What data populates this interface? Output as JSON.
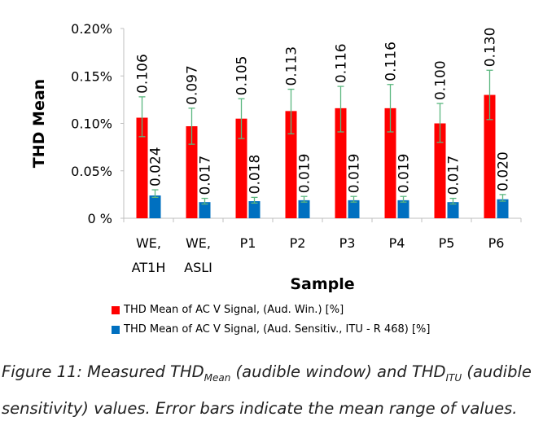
{
  "chart_data": {
    "type": "bar",
    "categories": [
      [
        "WE,",
        "AT1H"
      ],
      [
        "WE,",
        "ASLI"
      ],
      [
        "P1"
      ],
      [
        "P2"
      ],
      [
        "P3"
      ],
      [
        "P4"
      ],
      [
        "P5"
      ],
      [
        "P6"
      ]
    ],
    "series": [
      {
        "name": "THD Mean of AC V Signal, (Aud. Win.) [%]",
        "color": "#ff0000",
        "values": [
          0.106,
          0.097,
          0.105,
          0.113,
          0.116,
          0.116,
          0.1,
          0.13
        ],
        "labels": [
          "0.106",
          "0.097",
          "0.105",
          "0.113",
          "0.116",
          "0.116",
          "0.100",
          "0.130"
        ],
        "error_low": [
          0.086,
          0.078,
          0.084,
          0.089,
          0.091,
          0.091,
          0.08,
          0.104
        ],
        "error_high": [
          0.128,
          0.116,
          0.126,
          0.136,
          0.139,
          0.141,
          0.121,
          0.156
        ]
      },
      {
        "name": "THD Mean of AC V Signal, (Aud. Sensitiv., ITU - R 468) [%]",
        "color": "#0070c0",
        "values": [
          0.024,
          0.017,
          0.018,
          0.019,
          0.019,
          0.019,
          0.017,
          0.02
        ],
        "labels": [
          "0.024",
          "0.017",
          "0.018",
          "0.019",
          "0.019",
          "0.019",
          "0.017",
          "0.020"
        ],
        "error_low": [
          0.022,
          0.015,
          0.016,
          0.017,
          0.017,
          0.017,
          0.015,
          0.018
        ],
        "error_high": [
          0.03,
          0.021,
          0.022,
          0.023,
          0.023,
          0.023,
          0.021,
          0.025
        ]
      }
    ],
    "error_bar_color": "#5bb77f",
    "xlabel": "Sample",
    "ylabel": "THD Mean",
    "ylim": [
      0,
      0.2
    ],
    "yticks": [
      0,
      0.05,
      0.1,
      0.15,
      0.2
    ],
    "ytick_labels": [
      "0 %",
      "0.05%",
      "0.10%",
      "0.15%",
      "0.20%"
    ],
    "grid": false,
    "legend_position": "bottom"
  },
  "legend": {
    "items": [
      {
        "label": "THD Mean of AC V Signal, (Aud. Win.) [%]",
        "color": "#ff0000"
      },
      {
        "label": "THD Mean of AC V Signal, (Aud. Sensitiv., ITU - R 468) [%]",
        "color": "#0070c0"
      }
    ]
  },
  "caption": {
    "prefix": "Figure 11: Measured THD",
    "sub1": "Mean",
    "mid": " (audible window) and THD",
    "sub2": "ITU",
    "suffix": " (audible sensitivity) values. Error bars indicate the mean range of values."
  }
}
